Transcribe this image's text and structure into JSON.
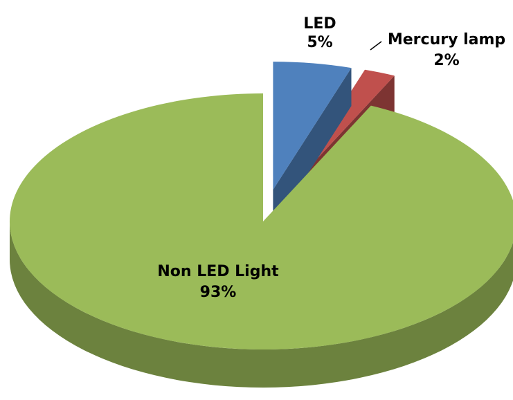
{
  "chart_data": {
    "type": "pie3d",
    "categories": [
      "LED",
      "Mercury lamp",
      "Non LED Light"
    ],
    "values": [
      5,
      2,
      93
    ],
    "value_labels": [
      "5%",
      "2%",
      "93%"
    ],
    "colors": [
      "#4f81bd",
      "#c0504d",
      "#9bbb59"
    ],
    "exploded": [
      true,
      true,
      false
    ]
  }
}
